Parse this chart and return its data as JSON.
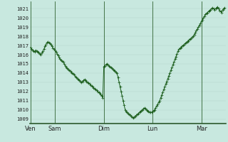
{
  "background_color": "#c8e8df",
  "plot_bg_color": "#c8e8df",
  "line_color": "#1a5c1a",
  "marker_color": "#1a5c1a",
  "grid_color_minor": "#b0d4c8",
  "grid_color_major": "#90b8aa",
  "vline_color": "#336633",
  "ylim": [
    1008.5,
    1021.8
  ],
  "yticks": [
    1009,
    1010,
    1011,
    1012,
    1013,
    1014,
    1015,
    1016,
    1017,
    1018,
    1019,
    1020,
    1021
  ],
  "xtick_labels": [
    "Ven",
    "Sam",
    "Dim",
    "Lun",
    "Mar"
  ],
  "xtick_positions": [
    0,
    24,
    72,
    120,
    168
  ],
  "data_x": [
    0,
    1,
    2,
    3,
    4,
    5,
    6,
    7,
    8,
    9,
    10,
    11,
    12,
    13,
    14,
    15,
    16,
    17,
    18,
    19,
    20,
    21,
    22,
    23,
    24,
    25,
    26,
    27,
    28,
    29,
    30,
    31,
    32,
    33,
    34,
    35,
    36,
    37,
    38,
    39,
    40,
    41,
    42,
    43,
    44,
    45,
    46,
    47,
    48,
    49,
    50,
    51,
    52,
    53,
    54,
    55,
    56,
    57,
    58,
    59,
    60,
    61,
    62,
    63,
    64,
    65,
    66,
    67,
    68,
    69,
    70,
    71,
    72,
    73,
    74,
    75,
    76,
    77,
    78,
    79,
    80,
    81,
    82,
    83,
    84,
    85,
    86,
    87,
    88,
    89,
    90,
    91,
    92,
    93,
    94,
    95,
    96,
    97,
    98,
    99,
    100,
    101,
    102,
    103,
    104,
    105,
    106,
    107,
    108,
    109,
    110,
    111,
    112,
    113,
    114,
    115,
    116,
    117,
    118,
    119,
    120,
    121,
    122,
    123,
    124,
    125,
    126,
    127,
    128,
    129,
    130,
    131,
    132,
    133,
    134,
    135,
    136,
    137,
    138,
    139,
    140,
    141,
    142,
    143,
    144,
    145,
    146,
    147,
    148,
    149,
    150,
    151,
    152,
    153,
    154,
    155,
    156,
    157,
    158,
    159,
    160,
    161,
    162,
    163,
    164,
    165,
    166,
    167,
    168,
    169,
    170,
    171,
    172,
    173,
    174,
    175,
    176,
    177,
    178,
    179,
    180,
    181,
    182,
    183,
    184,
    185,
    186,
    187,
    188,
    189,
    190,
    191
  ],
  "data_y": [
    1016.8,
    1016.6,
    1016.5,
    1016.4,
    1016.3,
    1016.5,
    1016.4,
    1016.3,
    1016.2,
    1016.1,
    1016.0,
    1016.2,
    1016.4,
    1016.6,
    1016.9,
    1017.1,
    1017.3,
    1017.4,
    1017.3,
    1017.2,
    1017.1,
    1016.9,
    1016.7,
    1016.6,
    1016.5,
    1016.3,
    1016.1,
    1015.9,
    1015.7,
    1015.5,
    1015.4,
    1015.3,
    1015.2,
    1015.0,
    1014.8,
    1014.6,
    1014.5,
    1014.4,
    1014.3,
    1014.2,
    1014.1,
    1014.0,
    1013.9,
    1013.8,
    1013.6,
    1013.5,
    1013.4,
    1013.3,
    1013.2,
    1013.1,
    1013.0,
    1013.1,
    1013.2,
    1013.3,
    1013.2,
    1013.1,
    1013.0,
    1012.9,
    1012.8,
    1012.7,
    1012.6,
    1012.5,
    1012.4,
    1012.3,
    1012.2,
    1012.1,
    1012.0,
    1011.9,
    1011.8,
    1011.7,
    1011.5,
    1011.3,
    1014.7,
    1014.8,
    1014.9,
    1015.0,
    1014.9,
    1014.8,
    1014.7,
    1014.6,
    1014.5,
    1014.4,
    1014.3,
    1014.2,
    1014.1,
    1014.0,
    1013.5,
    1013.0,
    1012.5,
    1012.0,
    1011.5,
    1011.0,
    1010.5,
    1010.0,
    1009.8,
    1009.7,
    1009.6,
    1009.5,
    1009.4,
    1009.3,
    1009.2,
    1009.1,
    1009.2,
    1009.3,
    1009.4,
    1009.5,
    1009.6,
    1009.7,
    1009.8,
    1009.9,
    1010.0,
    1010.1,
    1010.2,
    1010.1,
    1010.0,
    1009.9,
    1009.8,
    1009.7,
    1009.7,
    1009.7,
    1009.8,
    1009.9,
    1010.0,
    1010.2,
    1010.4,
    1010.6,
    1010.8,
    1011.0,
    1011.3,
    1011.6,
    1011.9,
    1012.2,
    1012.5,
    1012.8,
    1013.1,
    1013.4,
    1013.7,
    1014.0,
    1014.3,
    1014.6,
    1014.9,
    1015.2,
    1015.5,
    1015.8,
    1016.1,
    1016.4,
    1016.6,
    1016.7,
    1016.8,
    1016.9,
    1017.0,
    1017.1,
    1017.2,
    1017.3,
    1017.4,
    1017.5,
    1017.6,
    1017.7,
    1017.8,
    1017.9,
    1018.0,
    1018.2,
    1018.4,
    1018.6,
    1018.8,
    1019.0,
    1019.2,
    1019.4,
    1019.6,
    1019.8,
    1020.0,
    1020.2,
    1020.4,
    1020.5,
    1020.6,
    1020.7,
    1020.8,
    1020.9,
    1021.0,
    1021.1,
    1021.0,
    1020.9,
    1021.0,
    1021.1,
    1021.2,
    1021.0,
    1020.8,
    1020.7,
    1020.6,
    1020.9,
    1021.0,
    1021.1
  ]
}
